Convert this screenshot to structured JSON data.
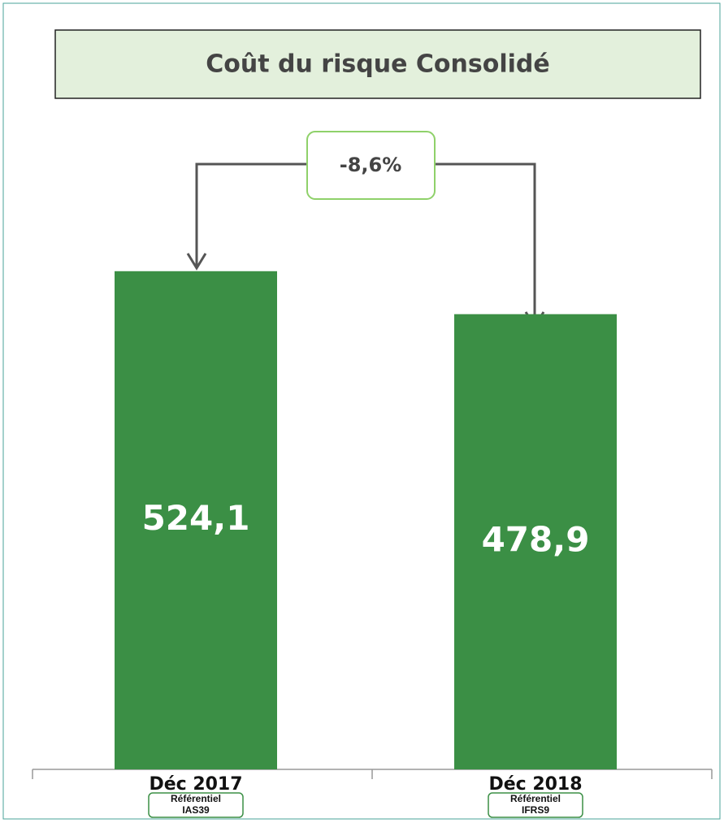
{
  "chart_data": {
    "type": "bar",
    "title": "Coût du risque Consolidé",
    "categories": [
      "Déc 2017",
      "Déc 2018"
    ],
    "values": [
      524.1,
      478.9
    ],
    "value_labels": [
      "524,1",
      "478,9"
    ],
    "color": "#3b8f45",
    "notes": [
      [
        "Référentiel",
        "IAS39"
      ],
      [
        "Référentiel",
        "IFRS9"
      ]
    ],
    "annotation": "-8,6%"
  }
}
